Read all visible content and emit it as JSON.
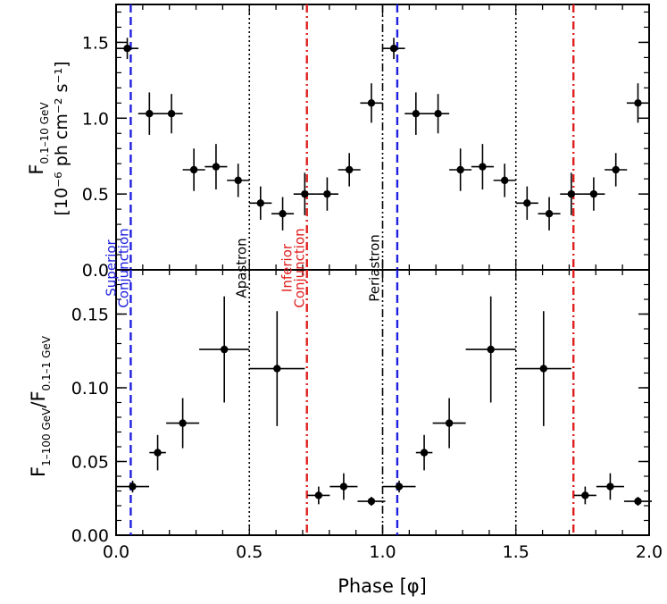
{
  "chart_data": [
    {
      "type": "scatter",
      "panel": "top",
      "ylabel_main": "F",
      "ylabel_sub": "0.1–10 GeV",
      "ylabel_unit_line": "[10⁻⁶ ph cm⁻² s⁻¹]",
      "xlim": [
        0.0,
        2.0
      ],
      "ylim": [
        0.0,
        1.75
      ],
      "yticks": [
        0.0,
        0.5,
        1.0,
        1.5
      ],
      "ytick_labels": [
        "0.0",
        "0.5",
        "1.0",
        "1.5"
      ],
      "series": [
        {
          "points": [
            {
              "x": 0.042,
              "xerr": 0.042,
              "y": 1.46,
              "yerr": 0.07
            },
            {
              "x": 0.125,
              "xerr": 0.042,
              "y": 1.03,
              "yerr": 0.14
            },
            {
              "x": 0.208,
              "xerr": 0.042,
              "y": 1.03,
              "yerr": 0.13
            },
            {
              "x": 0.292,
              "xerr": 0.042,
              "y": 0.66,
              "yerr": 0.14
            },
            {
              "x": 0.375,
              "xerr": 0.042,
              "y": 0.68,
              "yerr": 0.15
            },
            {
              "x": 0.458,
              "xerr": 0.042,
              "y": 0.59,
              "yerr": 0.11
            },
            {
              "x": 0.542,
              "xerr": 0.042,
              "y": 0.44,
              "yerr": 0.11
            },
            {
              "x": 0.625,
              "xerr": 0.042,
              "y": 0.37,
              "yerr": 0.11
            },
            {
              "x": 0.708,
              "xerr": 0.042,
              "y": 0.5,
              "yerr": 0.14
            },
            {
              "x": 0.792,
              "xerr": 0.042,
              "y": 0.5,
              "yerr": 0.11
            },
            {
              "x": 0.875,
              "xerr": 0.042,
              "y": 0.66,
              "yerr": 0.11
            },
            {
              "x": 0.958,
              "xerr": 0.042,
              "y": 1.1,
              "yerr": 0.13
            },
            {
              "x": 1.042,
              "xerr": 0.042,
              "y": 1.46,
              "yerr": 0.07
            },
            {
              "x": 1.125,
              "xerr": 0.042,
              "y": 1.03,
              "yerr": 0.14
            },
            {
              "x": 1.208,
              "xerr": 0.042,
              "y": 1.03,
              "yerr": 0.13
            },
            {
              "x": 1.292,
              "xerr": 0.042,
              "y": 0.66,
              "yerr": 0.14
            },
            {
              "x": 1.375,
              "xerr": 0.042,
              "y": 0.68,
              "yerr": 0.15
            },
            {
              "x": 1.458,
              "xerr": 0.042,
              "y": 0.59,
              "yerr": 0.11
            },
            {
              "x": 1.542,
              "xerr": 0.042,
              "y": 0.44,
              "yerr": 0.11
            },
            {
              "x": 1.625,
              "xerr": 0.042,
              "y": 0.37,
              "yerr": 0.11
            },
            {
              "x": 1.708,
              "xerr": 0.042,
              "y": 0.5,
              "yerr": 0.14
            },
            {
              "x": 1.792,
              "xerr": 0.042,
              "y": 0.5,
              "yerr": 0.11
            },
            {
              "x": 1.875,
              "xerr": 0.042,
              "y": 0.66,
              "yerr": 0.11
            },
            {
              "x": 1.958,
              "xerr": 0.042,
              "y": 1.1,
              "yerr": 0.13
            }
          ]
        }
      ]
    },
    {
      "type": "scatter",
      "panel": "bottom",
      "ylabel_main": "F",
      "ylabel_sub1": "1–100 GeV",
      "ylabel_slash": "/F",
      "ylabel_sub2": "0.1–1 GeV",
      "xlabel": "Phase [φ]",
      "xlim": [
        0.0,
        2.0
      ],
      "ylim": [
        0.0,
        0.18
      ],
      "xticks": [
        0.0,
        0.5,
        1.0,
        1.5,
        2.0
      ],
      "xtick_labels": [
        "0.0",
        "0.5",
        "1.0",
        "1.5",
        "2.0"
      ],
      "yticks": [
        0.0,
        0.05,
        0.1,
        0.15
      ],
      "ytick_labels": [
        "0.00",
        "0.05",
        "0.10",
        "0.15"
      ],
      "series": [
        {
          "points": [
            {
              "x": 0.062,
              "xerr": 0.062,
              "y": 0.033,
              "yerr": 0.004
            },
            {
              "x": 0.156,
              "xerr": 0.031,
              "y": 0.056,
              "yerr": 0.012
            },
            {
              "x": 0.25,
              "xerr": 0.062,
              "y": 0.076,
              "yerr": 0.017
            },
            {
              "x": 0.406,
              "xerr": 0.094,
              "y": 0.126,
              "yerr": 0.036
            },
            {
              "x": 0.604,
              "xerr": 0.104,
              "y": 0.113,
              "yerr": 0.039
            },
            {
              "x": 0.76,
              "xerr": 0.042,
              "y": 0.027,
              "yerr": 0.006
            },
            {
              "x": 0.854,
              "xerr": 0.052,
              "y": 0.033,
              "yerr": 0.009
            },
            {
              "x": 0.958,
              "xerr": 0.052,
              "y": 0.023,
              "yerr": 0.003
            },
            {
              "x": 1.062,
              "xerr": 0.062,
              "y": 0.033,
              "yerr": 0.004
            },
            {
              "x": 1.156,
              "xerr": 0.031,
              "y": 0.056,
              "yerr": 0.012
            },
            {
              "x": 1.25,
              "xerr": 0.062,
              "y": 0.076,
              "yerr": 0.017
            },
            {
              "x": 1.406,
              "xerr": 0.094,
              "y": 0.126,
              "yerr": 0.036
            },
            {
              "x": 1.604,
              "xerr": 0.104,
              "y": 0.113,
              "yerr": 0.039
            },
            {
              "x": 1.76,
              "xerr": 0.042,
              "y": 0.027,
              "yerr": 0.006
            },
            {
              "x": 1.854,
              "xerr": 0.052,
              "y": 0.033,
              "yerr": 0.009
            },
            {
              "x": 1.958,
              "xerr": 0.052,
              "y": 0.023,
              "yerr": 0.003
            }
          ]
        }
      ]
    }
  ],
  "vertical_lines": [
    {
      "x": 0.055,
      "style": "dashed",
      "color": "#1f1fe0",
      "label": "Superior\nConjunction"
    },
    {
      "x": 1.055,
      "style": "dashed",
      "color": "#1f1fe0",
      "label": ""
    },
    {
      "x": 0.5,
      "style": "dotted",
      "color": "#000000",
      "label": "Apastron"
    },
    {
      "x": 1.5,
      "style": "dotted",
      "color": "#000000",
      "label": ""
    },
    {
      "x": 0.716,
      "style": "dashdot",
      "color": "#e01f1f",
      "label": "Inferior\nConjunction"
    },
    {
      "x": 1.716,
      "style": "dashdot",
      "color": "#e01f1f",
      "label": ""
    },
    {
      "x": 1.0,
      "style": "dashdotdot",
      "color": "#000000",
      "label": "Periastron"
    }
  ],
  "colors": {
    "superior": "#1f1fe0",
    "inferior": "#e01f1f",
    "axis": "#000000"
  }
}
